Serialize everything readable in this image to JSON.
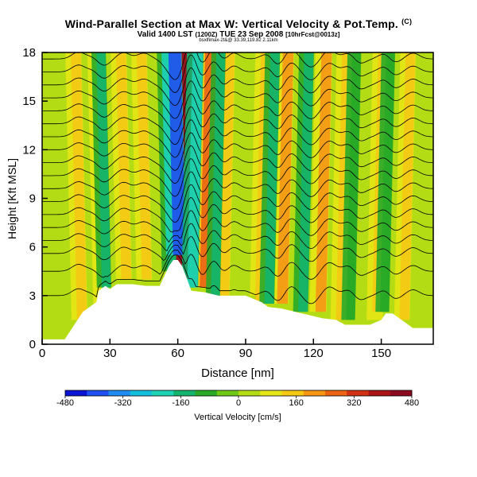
{
  "header": {
    "title_main": "Wind-Parallel Section at Max W: Vertical Velocity & Pot.Temp.",
    "title_mark": "(C)",
    "valid_prefix": "Valid 1400 LST",
    "valid_paren": "(1200Z)",
    "valid_date": "TUE 23 Sep 2008",
    "valid_fcst": "[10hrFcst@0013z]",
    "subline": "bsxlfimax-2t&@ 33.39,119.82 2.11km"
  },
  "colors": {
    "scale": [
      "#0a14d2",
      "#1e50f0",
      "#1e8cf0",
      "#14bedc",
      "#1ed2b4",
      "#14b46e",
      "#28aa28",
      "#6ec814",
      "#b4dc14",
      "#e6e614",
      "#f5c814",
      "#f59614",
      "#eb6414",
      "#d23214",
      "#aa1414",
      "#8c0a1e"
    ],
    "background_w0": "#b4dc14",
    "terrain": "#ffffff",
    "contour": "#000000"
  },
  "chart_data": {
    "type": "heatmap",
    "xlabel": "Distance [nm]",
    "ylabel": "Height [Kft MSL]",
    "xlim": [
      0,
      173
    ],
    "ylim": [
      0,
      18
    ],
    "xticks": [
      0,
      30,
      60,
      90,
      120,
      150
    ],
    "yticks": [
      0,
      3,
      6,
      9,
      12,
      15,
      18
    ],
    "colorbar": {
      "label": "Vertical Velocity [cm/s]",
      "range": [
        -480,
        480
      ],
      "tick_values": [
        -480,
        -320,
        -160,
        0,
        160,
        320,
        480
      ],
      "tick_labels": [
        "-480",
        "-320",
        "-160",
        "0",
        "160",
        "320",
        "480"
      ]
    },
    "terrain_profile": {
      "x": [
        0,
        10,
        18,
        24,
        25,
        28,
        30,
        33,
        36,
        40,
        46,
        52,
        56,
        58,
        60,
        62,
        66,
        72,
        78,
        84,
        90,
        97,
        100,
        106,
        112,
        118,
        124,
        130,
        134,
        140,
        145,
        150,
        152,
        155,
        158,
        164,
        173
      ],
      "y": [
        0.3,
        0.3,
        2.0,
        2.6,
        3.3,
        3.6,
        3.4,
        3.7,
        3.7,
        3.7,
        3.6,
        3.6,
        4.8,
        5.2,
        5.2,
        4.8,
        3.3,
        3.2,
        3.0,
        3.0,
        3.0,
        2.6,
        2.3,
        2.2,
        2.0,
        1.8,
        1.6,
        1.5,
        1.2,
        1.2,
        1.2,
        1.5,
        1.9,
        1.9,
        1.6,
        1.0,
        1.0
      ]
    },
    "updrafts": [
      {
        "x": 16,
        "peak": 140
      },
      {
        "x": 23,
        "peak": 60
      },
      {
        "x": 36,
        "peak": 130
      },
      {
        "x": 45,
        "peak": 120
      },
      {
        "x": 66,
        "peak": 480
      },
      {
        "x": 76,
        "peak": 280
      },
      {
        "x": 84,
        "peak": 160
      },
      {
        "x": 100,
        "peak": 130
      },
      {
        "x": 110,
        "peak": 200
      },
      {
        "x": 127,
        "peak": 180
      },
      {
        "x": 136,
        "peak": 140
      },
      {
        "x": 152,
        "peak": 150
      },
      {
        "x": 164,
        "peak": 120
      }
    ],
    "downdrafts": [
      {
        "x": 27,
        "peak": -150
      },
      {
        "x": 56,
        "peak": -160
      },
      {
        "x": 60,
        "peak": -380
      },
      {
        "x": 70,
        "peak": -240
      },
      {
        "x": 80,
        "peak": -140
      },
      {
        "x": 104,
        "peak": -170
      },
      {
        "x": 119,
        "peak": -170
      },
      {
        "x": 140,
        "peak": -120
      },
      {
        "x": 155,
        "peak": -120
      }
    ],
    "isentrope_base_heights": [
      3.0,
      4.5,
      5.6,
      6.4,
      7.2,
      8.0,
      8.8,
      9.6,
      10.4,
      11.2,
      12.0,
      12.8,
      13.6,
      14.4,
      15.2,
      16.0,
      16.8,
      17.6
    ]
  }
}
